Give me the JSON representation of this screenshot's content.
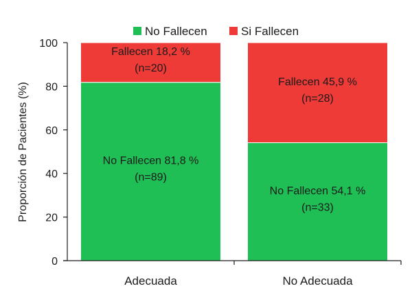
{
  "chart_data": {
    "type": "bar",
    "stacked": true,
    "categories": [
      "Adecuada",
      "No Adecuada"
    ],
    "series": [
      {
        "name": "No Fallecen",
        "color": "#1fbf55",
        "values": [
          81.8,
          54.1
        ],
        "labels": [
          [
            "No Fallecen 81,8 %",
            "(n=89)"
          ],
          [
            "No Fallecen 54,1 %",
            "(n=33)"
          ]
        ]
      },
      {
        "name": "Si Fallecen",
        "color": "#ee3b37",
        "values": [
          18.2,
          45.9
        ],
        "labels": [
          [
            "Fallecen 18,2 %",
            "(n=20)"
          ],
          [
            "Fallecen 45,9 %",
            "(n=28)"
          ]
        ]
      }
    ],
    "ylabel": "Proporción de Pacientes (%)",
    "xlabel": "",
    "ylim": [
      0,
      100
    ],
    "yticks": [
      0,
      20,
      40,
      60,
      80,
      100
    ],
    "legend_position": "top",
    "grid": false
  }
}
